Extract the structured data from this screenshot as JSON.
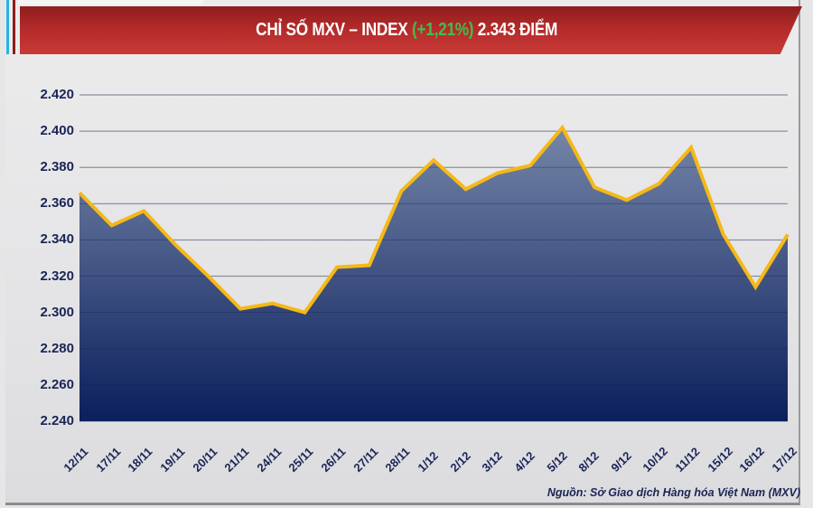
{
  "header": {
    "title_prefix": "CHỈ SỐ MXV – INDEX ",
    "change_pct": "(+1,21%)",
    "title_suffix": " 2.343 ĐIỂM"
  },
  "colors": {
    "banner_red": "#b32a2a",
    "change_green": "#3fbf4a",
    "line_yellow": "#f5b816",
    "area_top": "#7586a8",
    "area_bottom": "#0b1f5c",
    "axis_text": "#1a2456"
  },
  "source": "Nguồn: Sở Giao dịch Hàng hóa Việt Nam (MXV)",
  "chart_data": {
    "type": "area",
    "title": "CHỈ SỐ MXV – INDEX (+1,21%) 2.343 ĐIỂM",
    "xlabel": "",
    "ylabel": "",
    "ylim": [
      2240,
      2420
    ],
    "yticks": [
      "2.420",
      "2.400",
      "2.380",
      "2.360",
      "2.340",
      "2.320",
      "2.300",
      "2.280",
      "2.260",
      "2.240"
    ],
    "grid": true,
    "legend": "none",
    "categories": [
      "12/11",
      "17/11",
      "18/11",
      "19/11",
      "20/11",
      "21/11",
      "24/11",
      "25/11",
      "26/11",
      "27/11",
      "28/11",
      "1/12",
      "2/12",
      "3/12",
      "4/12",
      "5/12",
      "8/12",
      "9/12",
      "10/12",
      "11/12",
      "15/12",
      "16/12",
      "17/12"
    ],
    "series": [
      {
        "name": "MXV-Index",
        "values": [
          2366,
          2348,
          2356,
          2337,
          2320,
          2302,
          2305,
          2300,
          2325,
          2326,
          2367,
          2384,
          2368,
          2377,
          2381,
          2402,
          2369,
          2362,
          2371,
          2391,
          2343,
          2314,
          2343
        ]
      }
    ],
    "annotation": "Nguồn: Sở Giao dịch Hàng hóa Việt Nam (MXV)"
  }
}
